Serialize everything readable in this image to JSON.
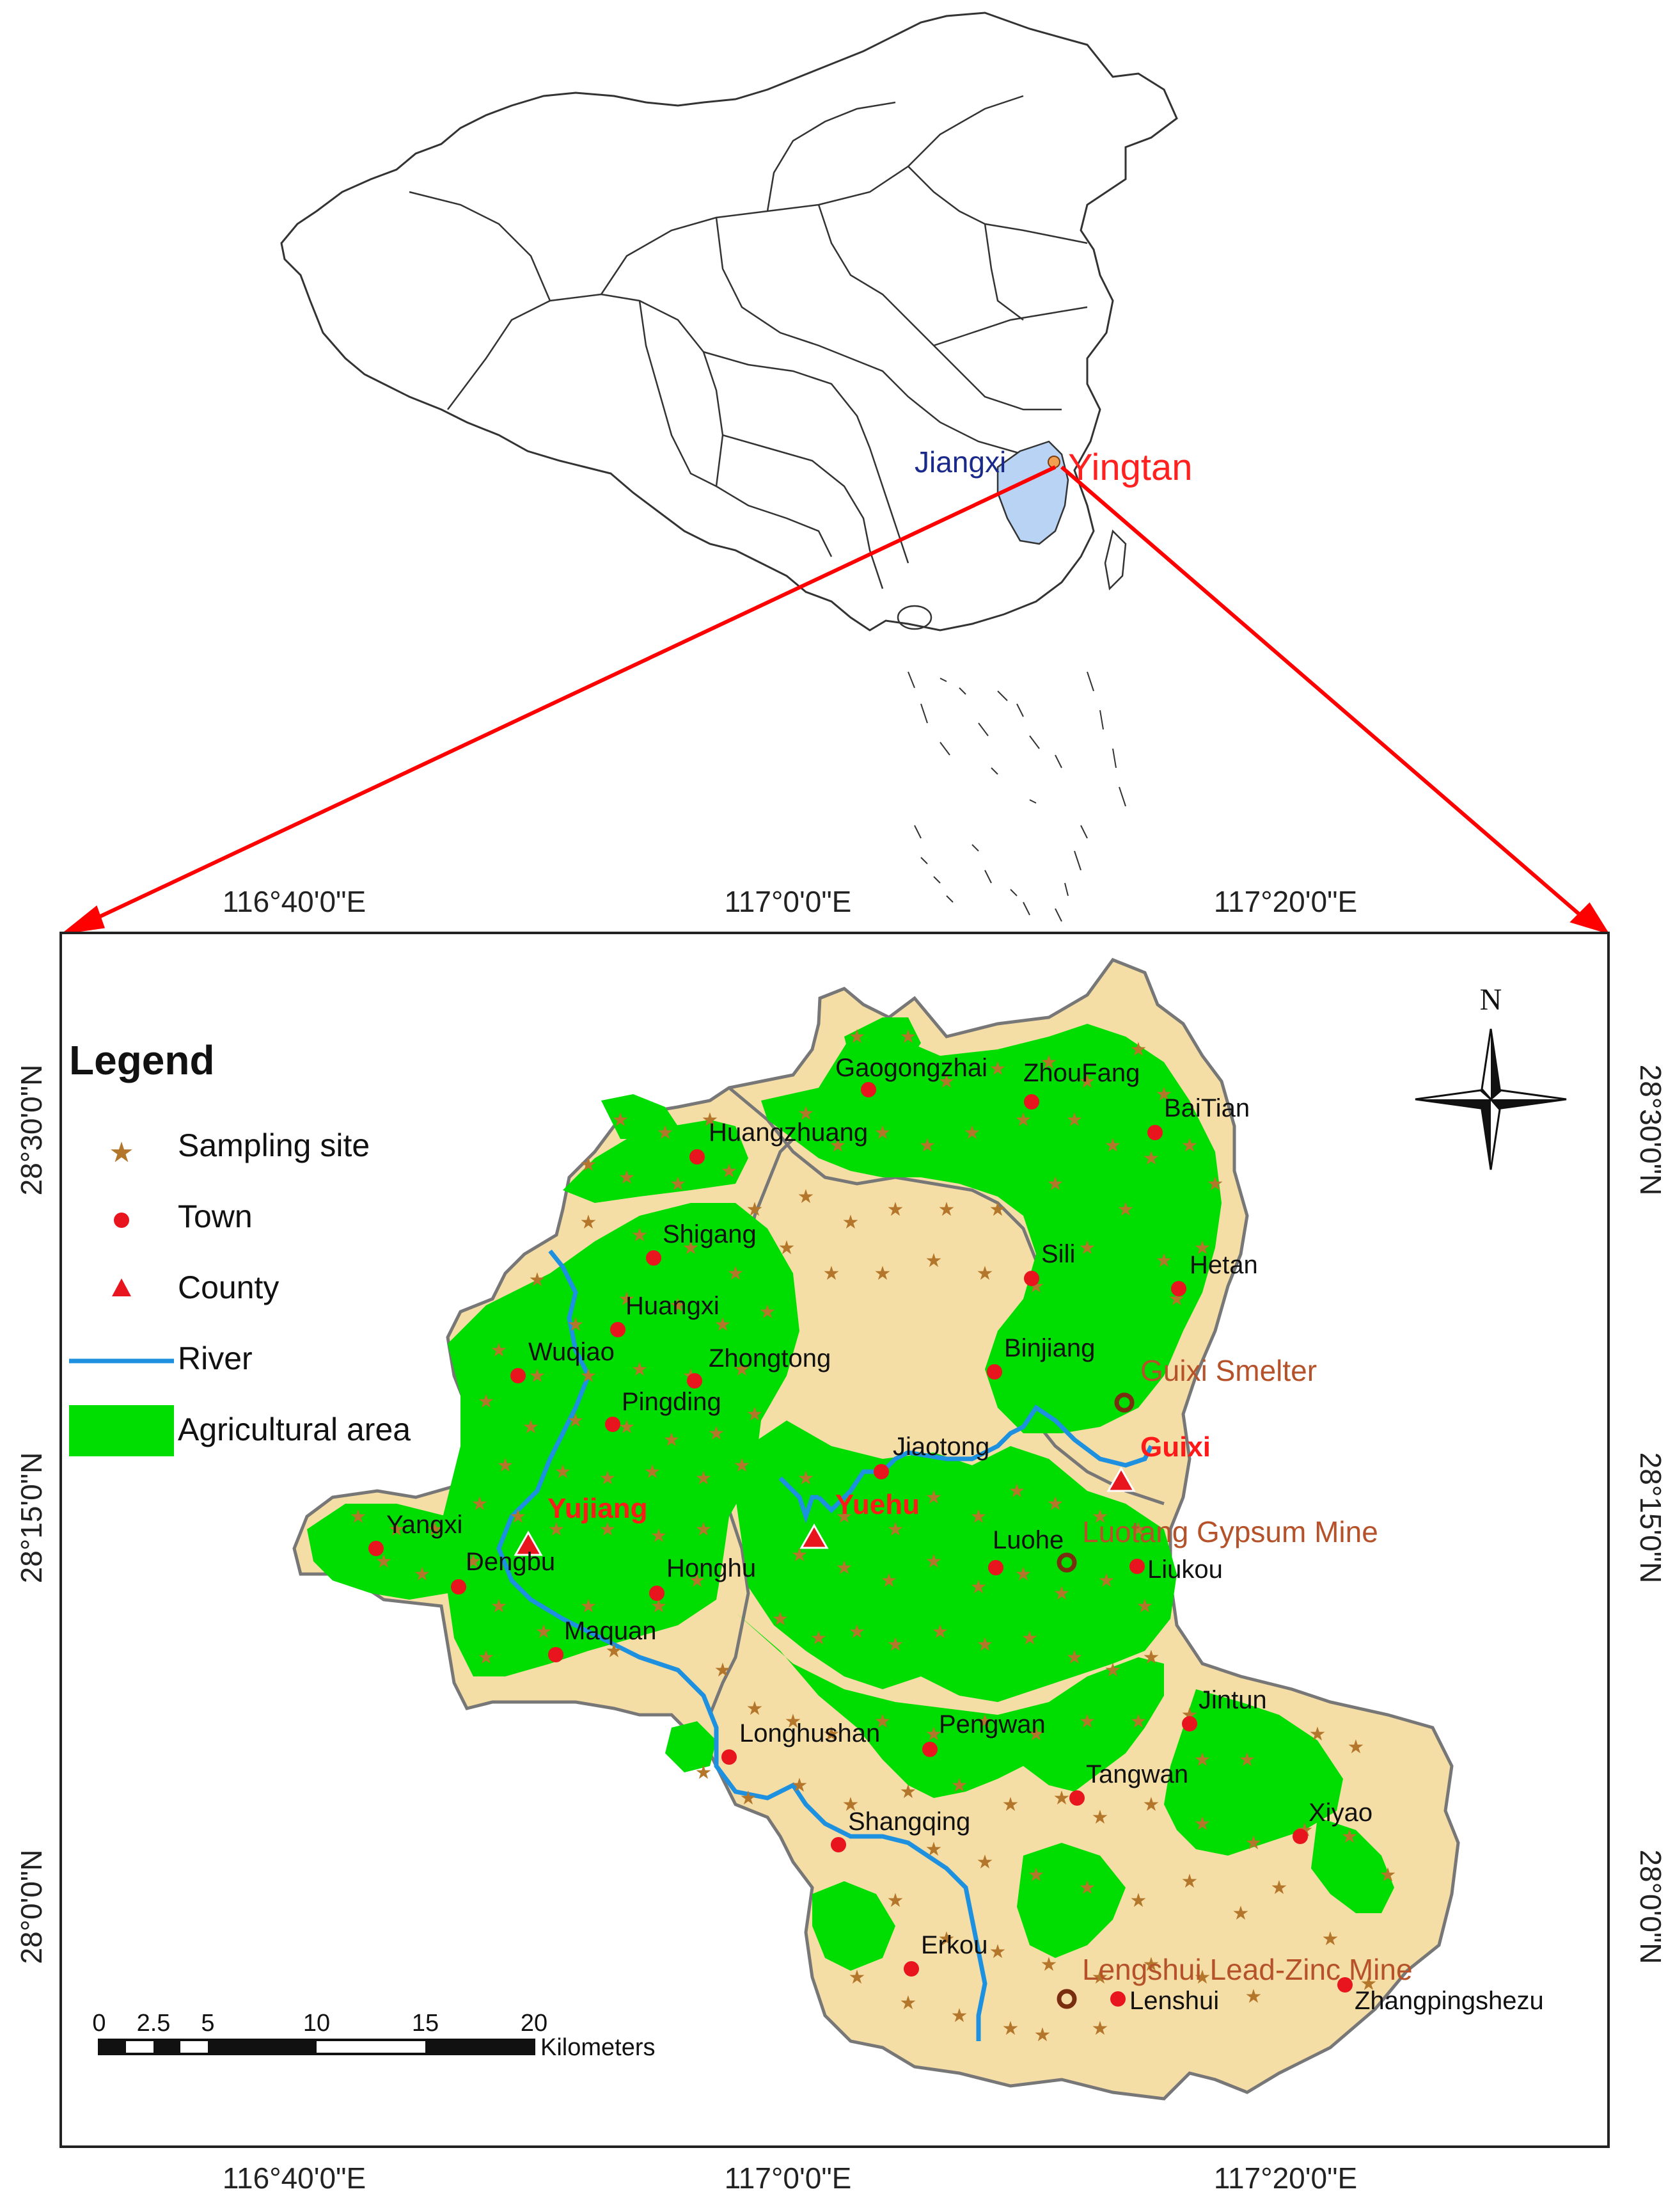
{
  "inset_map": {
    "province_label": "Jiangxi",
    "city_label": "Yingtan"
  },
  "coordinates": {
    "top_longitudes": [
      "116°40'0\"E",
      "117°0'0\"E",
      "117°20'0\"E"
    ],
    "bottom_longitudes": [
      "116°40'0\"E",
      "117°0'0\"E",
      "117°20'0\"E"
    ],
    "left_latitudes": [
      "28°30'0\"N",
      "28°15'0\"N",
      "28°0'0\"N"
    ],
    "right_latitudes": [
      "28°30'0\"N",
      "28°15'0\"N",
      "28°0'0\"N"
    ]
  },
  "legend": {
    "title": "Legend",
    "items": [
      {
        "label": "Sampling site",
        "icon": "star-icon"
      },
      {
        "label": "Town",
        "icon": "circle-icon"
      },
      {
        "label": "County",
        "icon": "triangle-icon"
      },
      {
        "label": "River",
        "icon": "line-icon"
      },
      {
        "label": "Agricultural area",
        "icon": "rect-icon"
      }
    ]
  },
  "north_arrow": {
    "label": "N"
  },
  "scale_bar": {
    "ticks": [
      "0",
      "2.5",
      "5",
      "10",
      "15",
      "20"
    ],
    "unit": "Kilometers"
  },
  "towns": [
    "Gaogongzhai",
    "ZhouFang",
    "BaiTian",
    "Huangzhuang",
    "Shigang",
    "Sili",
    "Hetan",
    "Huangxi",
    "Wuqiao",
    "Zhongtong",
    "Binjiang",
    "Pingding",
    "Jiaotong",
    "Yangxi",
    "Dengbu",
    "Honghu",
    "Luohe",
    "Liukou",
    "Maquan",
    "Jintun",
    "Pengwan",
    "Longhushan",
    "Tangwan",
    "Xiyao",
    "Shangqing",
    "Erkou",
    "Lenshui",
    "Zhangpingshezu"
  ],
  "counties": [
    "Yujiang",
    "Yuehu",
    "Guixi"
  ],
  "mines": [
    "Guixi Smelter",
    "Luotang Gypsum Mine",
    "Lengshui Lead-Zinc Mine"
  ],
  "colors": {
    "study_area": "#f5dea6",
    "agriculture": "#00dd00",
    "river": "#1e90e0",
    "town": "#e8141e",
    "county": "#e8141e",
    "sampling_site": "#b3762a",
    "mine_label": "#b5522a",
    "county_label": "#ff1a1a",
    "arrow": "#ff0000",
    "jiangxi_fill": "#b9d3f5"
  }
}
